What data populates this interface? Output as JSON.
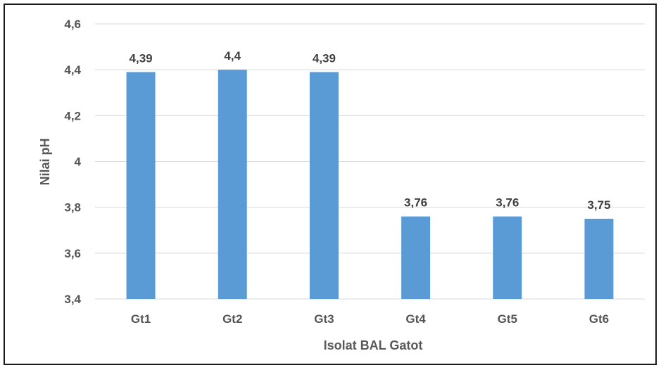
{
  "chart_data": {
    "type": "bar",
    "title": "",
    "xlabel": "Isolat BAL Gatot",
    "ylabel": "Nilai pH",
    "categories": [
      "Gt1",
      "Gt2",
      "Gt3",
      "Gt4",
      "Gt5",
      "Gt6"
    ],
    "values": [
      4.39,
      4.4,
      4.39,
      3.76,
      3.76,
      3.75
    ],
    "data_labels": [
      "4,39",
      "4,4",
      "4,39",
      "3,76",
      "3,76",
      "3,75"
    ],
    "ylim": [
      3.4,
      4.6
    ],
    "yticks": [
      3.4,
      3.6,
      3.8,
      4.0,
      4.2,
      4.4,
      4.6
    ],
    "ytick_labels": [
      "3,4",
      "3,6",
      "3,8",
      "4",
      "4,2",
      "4,4",
      "4,6"
    ],
    "grid": true,
    "legend": "none",
    "bar_color": "#5b9bd5",
    "grid_color": "#d9d9d9"
  }
}
